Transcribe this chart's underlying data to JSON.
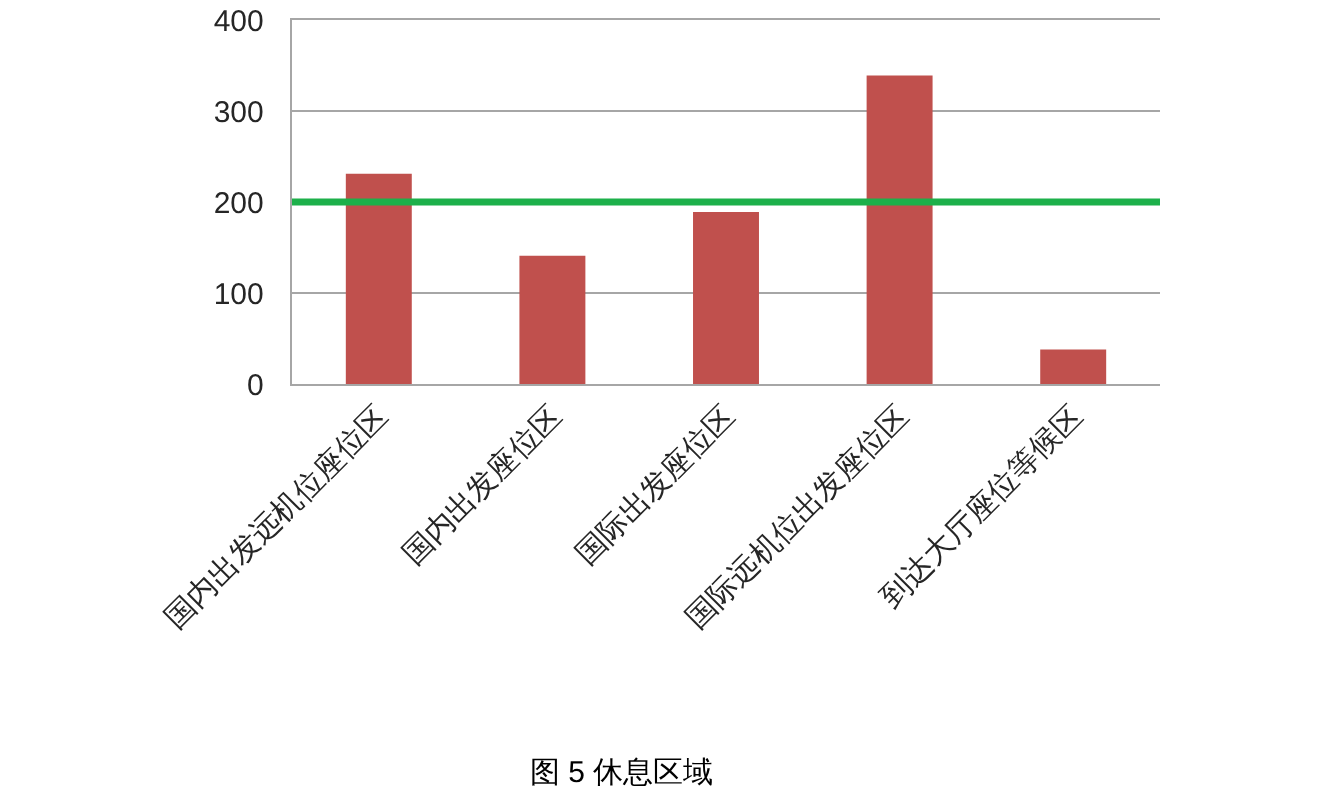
{
  "chart_data": {
    "type": "bar",
    "categories": [
      "国内出发远机位座位区",
      "国内出发座位区",
      "国际出发座位区",
      "国际远机位出发座位区",
      "到达大厅座位等候区"
    ],
    "values": [
      231,
      141,
      189,
      339,
      38
    ],
    "color": "#c0504d",
    "ylim": [
      0,
      400
    ],
    "yticks": [
      0,
      100,
      200,
      300,
      400
    ],
    "grid": "y",
    "ref_lines": [
      {
        "axis": "y",
        "value": 200,
        "color": "#1db04a"
      }
    ],
    "annotations": [
      "图 5 休息区域"
    ]
  }
}
